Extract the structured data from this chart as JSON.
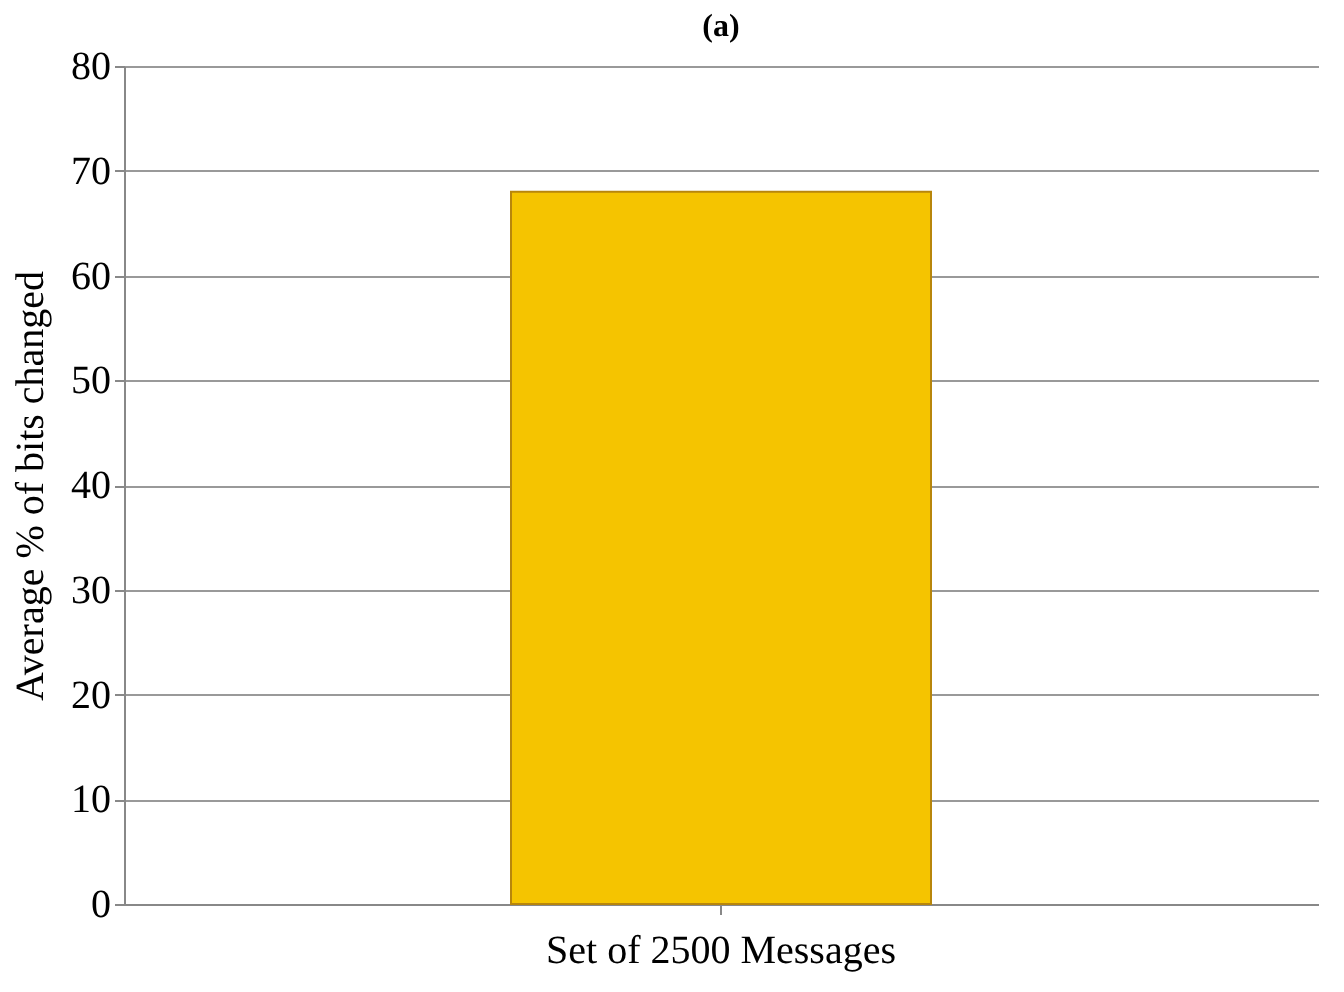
{
  "chart_data": {
    "type": "bar",
    "title": "(a)",
    "categories": [
      "Set of 2500 Messages"
    ],
    "values": [
      68
    ],
    "color": "#f5c400",
    "ylim": [
      0,
      80
    ],
    "yticks": [
      0,
      10,
      20,
      30,
      40,
      50,
      60,
      70,
      80
    ],
    "ylabel": "Average % of bits changed",
    "grid": "y"
  }
}
